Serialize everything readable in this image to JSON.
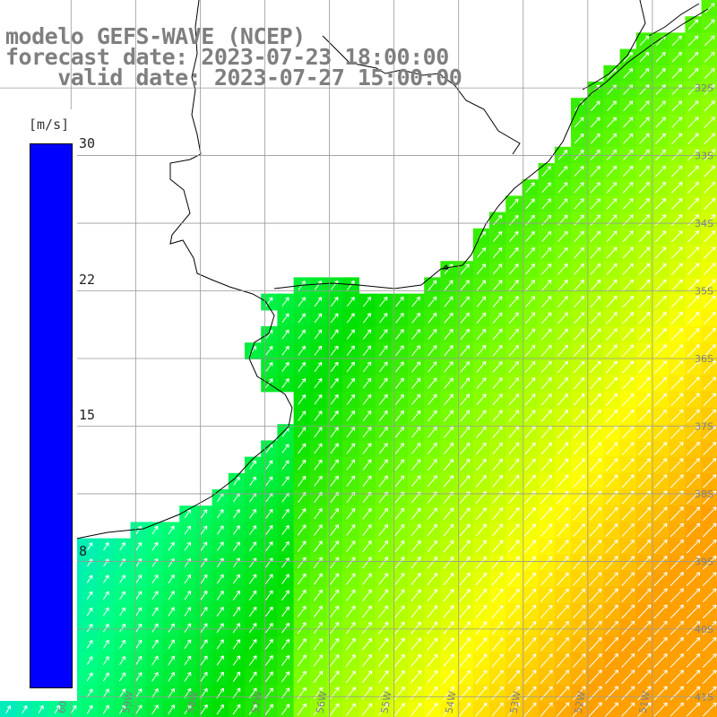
{
  "title": {
    "line1": "modelo GEFS-WAVE (NCEP)",
    "line2": "forecast date: 2023-07-23 18:00:00",
    "line3": "    valid date: 2023-07-27 15:00:00"
  },
  "colorbar": {
    "unit": "[m/s]",
    "min": 0,
    "max": 30,
    "ticks": [
      "30",
      "22",
      "15",
      "8"
    ],
    "tick_values": [
      30,
      22.5,
      15,
      7.5
    ],
    "colors": [
      "#0000ff",
      "#0070ff",
      "#00d8ff",
      "#00ff80",
      "#00e000",
      "#80ff00",
      "#ffff00",
      "#ffa000",
      "#ff3000",
      "#ff0000",
      "#c00080"
    ]
  },
  "map": {
    "lat_labels": [
      "32S",
      "33S",
      "34S",
      "35S",
      "36S",
      "37S",
      "38S",
      "39S",
      "40S",
      "41S"
    ],
    "lon_labels": [
      "60W",
      "59W",
      "58W",
      "57W",
      "56W",
      "55W",
      "54W",
      "53W",
      "52W",
      "51W"
    ],
    "lat_values": [
      -32,
      -33,
      -34,
      -35,
      -36,
      -37,
      -38,
      -39,
      -40,
      -41
    ],
    "lon_values": [
      -60,
      -59,
      -58,
      -57,
      -56,
      -55,
      -54,
      -53,
      -52,
      -51
    ],
    "lon_range": [
      -61.1,
      -50.0
    ],
    "lat_range": [
      -41.3,
      -30.7
    ],
    "land_color": "#ffffff",
    "grid_color": "#999999",
    "wind_direction": "southwest-to-northeast",
    "max_wind_ms": 21
  }
}
